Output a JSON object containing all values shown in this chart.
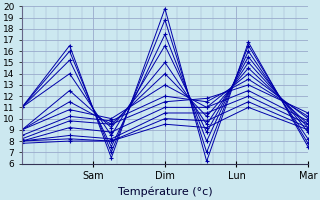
{
  "xlabel": "Température (°c)",
  "bg_color": "#cce8f0",
  "grid_color": "#99aacc",
  "line_color": "#0000aa",
  "xlim": [
    0,
    96
  ],
  "ylim": [
    6,
    20
  ],
  "yticks": [
    6,
    7,
    8,
    9,
    10,
    11,
    12,
    13,
    14,
    15,
    16,
    17,
    18,
    19,
    20
  ],
  "xtick_positions": [
    24,
    48,
    72,
    96
  ],
  "xtick_labels": [
    "Sam",
    "Dim",
    "Lun",
    "Mar"
  ],
  "series": [
    [
      11.0,
      16.5,
      6.5,
      19.8,
      6.2,
      16.8,
      7.5
    ],
    [
      11.0,
      16.0,
      7.0,
      18.8,
      7.0,
      16.5,
      7.8
    ],
    [
      11.0,
      15.2,
      7.5,
      17.5,
      8.0,
      16.0,
      8.2
    ],
    [
      11.0,
      14.0,
      8.5,
      16.5,
      8.8,
      15.5,
      8.8
    ],
    [
      9.0,
      12.5,
      9.2,
      15.0,
      9.5,
      15.0,
      9.2
    ],
    [
      9.0,
      11.5,
      9.5,
      14.0,
      10.2,
      14.5,
      9.5
    ],
    [
      9.0,
      10.8,
      10.0,
      13.0,
      11.0,
      14.0,
      10.0
    ],
    [
      8.5,
      10.2,
      9.8,
      12.0,
      11.5,
      13.5,
      10.2
    ],
    [
      8.2,
      9.8,
      9.5,
      11.5,
      11.8,
      13.0,
      10.5
    ],
    [
      8.0,
      9.2,
      8.8,
      11.0,
      11.0,
      12.5,
      9.8
    ],
    [
      8.0,
      8.5,
      8.2,
      10.5,
      10.5,
      12.0,
      9.5
    ],
    [
      8.0,
      8.2,
      8.0,
      10.0,
      9.8,
      11.5,
      9.2
    ],
    [
      7.8,
      8.0,
      8.0,
      9.5,
      9.2,
      11.0,
      9.0
    ]
  ],
  "x_nodes": [
    0,
    16,
    30,
    48,
    62,
    76,
    96
  ]
}
